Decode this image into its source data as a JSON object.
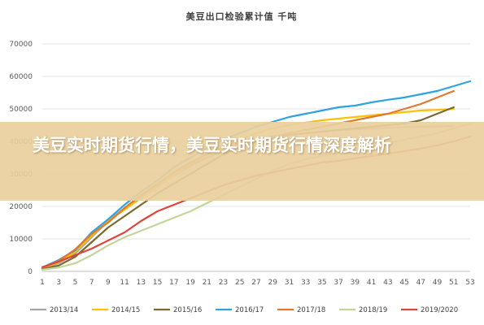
{
  "overlay": {
    "title": "美豆实时期货行情，美豆实时期货行情深度解析"
  },
  "chart_data": {
    "type": "line",
    "title": "美豆出口检验累计值 千吨",
    "xlabel": "",
    "ylabel": "",
    "ylim": [
      0,
      70000
    ],
    "yticks": [
      0,
      10000,
      20000,
      30000,
      40000,
      50000,
      60000,
      70000
    ],
    "xticks": [
      1,
      3,
      5,
      7,
      9,
      11,
      13,
      15,
      17,
      19,
      21,
      23,
      25,
      27,
      29,
      31,
      33,
      35,
      37,
      39,
      41,
      43,
      45,
      47,
      49,
      51,
      53
    ],
    "xlim": [
      1,
      53
    ],
    "grid": true,
    "legend_position": "bottom",
    "series": [
      {
        "name": "2013/14",
        "color": "#a5a5a5",
        "x": [
          1,
          3,
          5,
          7,
          9,
          11,
          13,
          15,
          17,
          19,
          21,
          23,
          25,
          27,
          29,
          31,
          33,
          35,
          37,
          39,
          41,
          43,
          45,
          47,
          49,
          51
        ],
        "y": [
          800,
          2500,
          5500,
          10500,
          15500,
          19500,
          23000,
          26500,
          29500,
          32500,
          35000,
          37000,
          39000,
          40500,
          41500,
          42000,
          42500,
          43000,
          43500,
          43700,
          44000,
          44200,
          44400,
          44500,
          44600,
          44700
        ]
      },
      {
        "name": "2014/15",
        "color": "#ffc000",
        "x": [
          1,
          3,
          5,
          7,
          9,
          11,
          13,
          15,
          17,
          19,
          21,
          23,
          25,
          27,
          29,
          31,
          33,
          35,
          37,
          39,
          41,
          43,
          45,
          47,
          49,
          51
        ],
        "y": [
          1000,
          2800,
          6000,
          11000,
          15500,
          19000,
          22500,
          26000,
          29500,
          33000,
          36000,
          38500,
          40500,
          42500,
          44000,
          45000,
          45800,
          46500,
          47000,
          47500,
          48000,
          48500,
          49000,
          49500,
          49700,
          50000
        ]
      },
      {
        "name": "2015/16",
        "color": "#7a6a30",
        "x": [
          1,
          3,
          5,
          7,
          9,
          11,
          13,
          15,
          17,
          19,
          21,
          23,
          25,
          27,
          29,
          31,
          33,
          35,
          37,
          39,
          41,
          43,
          45,
          47,
          49,
          51
        ],
        "y": [
          700,
          1800,
          4500,
          9000,
          13500,
          17000,
          20500,
          24000,
          27000,
          30000,
          33000,
          36000,
          38000,
          40000,
          41000,
          42000,
          42500,
          43000,
          43500,
          44000,
          44500,
          45000,
          45500,
          46500,
          48500,
          50500
        ]
      },
      {
        "name": "2016/17",
        "color": "#2ea3e0",
        "x": [
          1,
          3,
          5,
          7,
          9,
          11,
          13,
          15,
          17,
          19,
          21,
          23,
          25,
          27,
          29,
          31,
          33,
          35,
          37,
          39,
          41,
          43,
          45,
          47,
          49,
          51,
          53
        ],
        "y": [
          1200,
          3500,
          6500,
          12000,
          16000,
          20500,
          24500,
          28000,
          32000,
          35000,
          38000,
          40500,
          42500,
          44500,
          46000,
          47500,
          48500,
          49500,
          50500,
          51000,
          52000,
          52800,
          53500,
          54500,
          55500,
          57000,
          58500
        ]
      },
      {
        "name": "2017/18",
        "color": "#e07a2e",
        "x": [
          1,
          3,
          5,
          7,
          9,
          11,
          13,
          15,
          17,
          19,
          21,
          23,
          25,
          27,
          29,
          31,
          33,
          35,
          37,
          39,
          41,
          43,
          45,
          47,
          49,
          51
        ],
        "y": [
          1100,
          3200,
          6800,
          11500,
          15000,
          19500,
          23500,
          27000,
          30500,
          33500,
          36000,
          38000,
          39500,
          40500,
          41500,
          42500,
          43500,
          44500,
          45500,
          46500,
          47500,
          48500,
          50000,
          51500,
          53500,
          55500
        ]
      },
      {
        "name": "2018/19",
        "color": "#c2d69b",
        "x": [
          1,
          3,
          5,
          7,
          9,
          11,
          13,
          15,
          17,
          19,
          21,
          23,
          25,
          27,
          29,
          31,
          33,
          35,
          37,
          39,
          41,
          43,
          45,
          47,
          49,
          51,
          53
        ],
        "y": [
          500,
          1200,
          2500,
          5000,
          8000,
          10500,
          12500,
          14500,
          16500,
          18500,
          21000,
          23500,
          26000,
          28500,
          31000,
          33000,
          34500,
          35500,
          36500,
          37500,
          38500,
          39500,
          40500,
          41500,
          42500,
          44000,
          45500
        ]
      },
      {
        "name": "2019/2020",
        "color": "#e0453c",
        "x": [
          1,
          3,
          5,
          7,
          9,
          11,
          13,
          15,
          17,
          19,
          21,
          23,
          25,
          27,
          29,
          31,
          33,
          35,
          37,
          39,
          41,
          43,
          45,
          47,
          49,
          51,
          53
        ],
        "y": [
          1300,
          3000,
          5000,
          7000,
          9500,
          12000,
          15500,
          18500,
          20500,
          22500,
          24500,
          26500,
          28000,
          29500,
          30500,
          31500,
          32500,
          33500,
          34000,
          34800,
          35500,
          36200,
          37000,
          37800,
          38800,
          40000,
          41500
        ]
      }
    ]
  }
}
